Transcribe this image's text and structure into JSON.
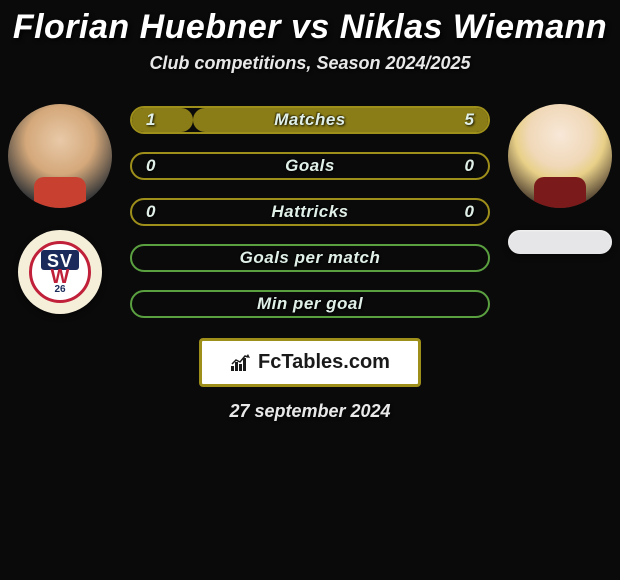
{
  "title": "Florian Huebner vs Niklas Wiemann",
  "subtitle": "Club competitions, Season 2024/2025",
  "colors": {
    "olive": "#9e8e1a",
    "olive_fill": "#8a7c16",
    "green": "#5aa040",
    "green_fill": "#4a8a32"
  },
  "bars": [
    {
      "label": "Matches",
      "left": "1",
      "right": "5",
      "left_pct": 17,
      "right_pct": 83,
      "type": "olive"
    },
    {
      "label": "Goals",
      "left": "0",
      "right": "0",
      "left_pct": 0,
      "right_pct": 0,
      "type": "olive"
    },
    {
      "label": "Hattricks",
      "left": "0",
      "right": "0",
      "left_pct": 0,
      "right_pct": 0,
      "type": "olive"
    },
    {
      "label": "Goals per match",
      "left": "",
      "right": "",
      "left_pct": 0,
      "right_pct": 0,
      "type": "green"
    },
    {
      "label": "Min per goal",
      "left": "",
      "right": "",
      "left_pct": 0,
      "right_pct": 0,
      "type": "green"
    }
  ],
  "brand": "FcTables.com",
  "date": "27 september 2024"
}
